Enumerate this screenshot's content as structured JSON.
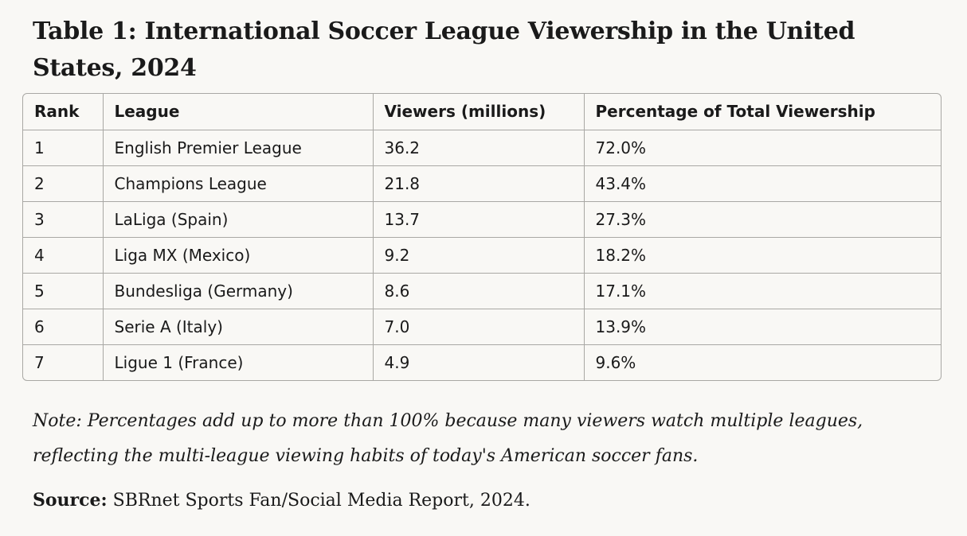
{
  "title": "Table 1: International Soccer League Viewership in the United States, 2024",
  "table": {
    "headers": [
      "Rank",
      "League",
      "Viewers (millions)",
      "Percentage of Total Viewership"
    ],
    "rows": [
      [
        "1",
        "English Premier League",
        "36.2",
        "72.0%"
      ],
      [
        "2",
        "Champions League",
        "21.8",
        "43.4%"
      ],
      [
        "3",
        "LaLiga (Spain)",
        "13.7",
        "27.3%"
      ],
      [
        "4",
        "Liga MX (Mexico)",
        "9.2",
        "18.2%"
      ],
      [
        "5",
        "Bundesliga (Germany)",
        "8.6",
        "17.1%"
      ],
      [
        "6",
        "Serie A (Italy)",
        "7.0",
        "13.9%"
      ],
      [
        "7",
        "Ligue 1 (France)",
        "4.9",
        "9.6%"
      ]
    ]
  },
  "note": "Note: Percentages add up to more than 100% because many viewers watch multiple leagues, reflecting the multi-league viewing habits of today's American soccer fans.",
  "source": {
    "label": "Source:",
    "text": " SBRnet Sports Fan/Social Media Report, 2024."
  }
}
